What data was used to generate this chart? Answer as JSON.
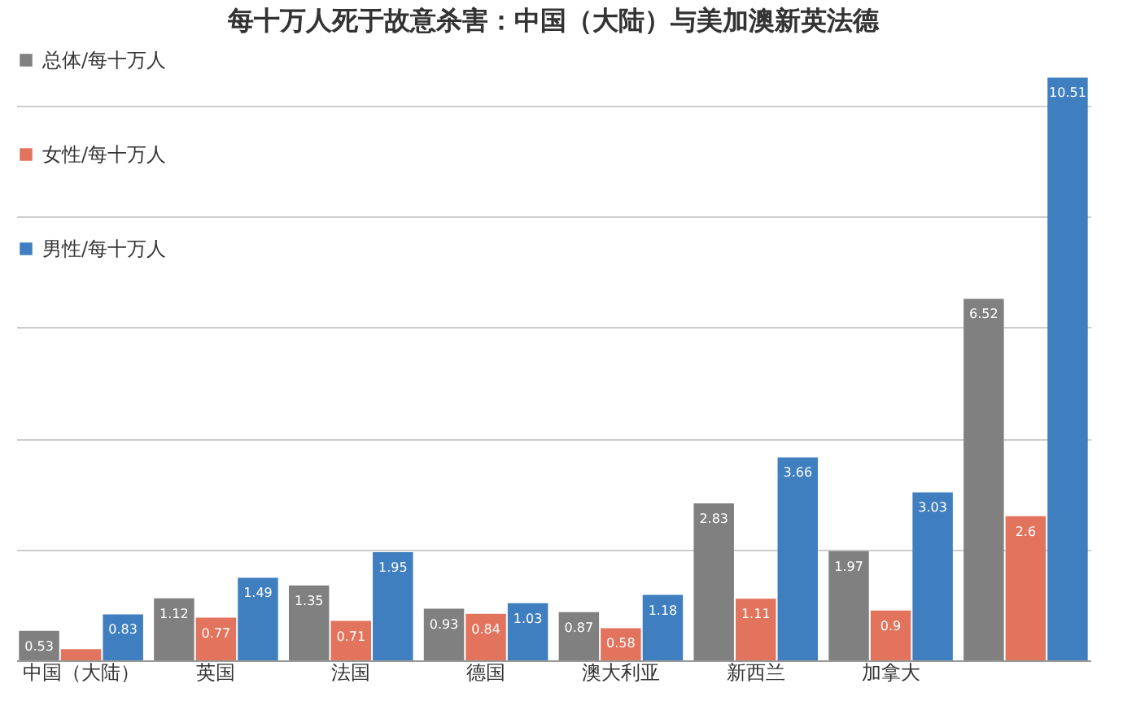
{
  "chart_data": {
    "type": "bar",
    "title": "每十万人死于故意杀害：中国（大陆）与美加澳新英法德",
    "categories": [
      "中国（大陆）",
      "英国",
      "法国",
      "德国",
      "澳大利亚",
      "新西兰",
      "加拿大",
      null
    ],
    "series": [
      {
        "name": "总体/每十万人",
        "color": "#808080",
        "values": [
          0.53,
          1.12,
          1.35,
          0.93,
          0.87,
          2.83,
          1.97,
          6.52
        ],
        "value_labels": [
          "0.53",
          "1.12",
          "1.35",
          "0.93",
          "0.87",
          "2.83",
          "1.97",
          "6.52"
        ]
      },
      {
        "name": "女性/每十万人",
        "color": "#e2735c",
        "values": [
          0.2,
          0.77,
          0.71,
          0.84,
          0.58,
          1.11,
          0.9,
          2.6
        ],
        "value_labels": [
          null,
          "0.77",
          "0.71",
          "0.84",
          "0.58",
          "1.11",
          "0.9",
          "2.6"
        ]
      },
      {
        "name": "男性/每十万人",
        "color": "#3f7fbf",
        "values": [
          0.83,
          1.49,
          1.95,
          1.03,
          1.18,
          3.66,
          3.03,
          10.51
        ],
        "value_labels": [
          "0.83",
          "1.49",
          "1.95",
          "1.03",
          "1.18",
          "3.66",
          "3.03",
          "10.51"
        ]
      }
    ],
    "ylim": [
      0,
      11
    ],
    "yticks": [
      {
        "value": 0,
        "label": null
      },
      {
        "value": 2,
        "label": null
      },
      {
        "value": 4,
        "label": null
      },
      {
        "value": 6,
        "label": null
      },
      {
        "value": 8,
        "label": null
      },
      {
        "value": 10,
        "label": null
      }
    ],
    "grid": "y",
    "legend": "top left",
    "tick_labels": "x"
  }
}
